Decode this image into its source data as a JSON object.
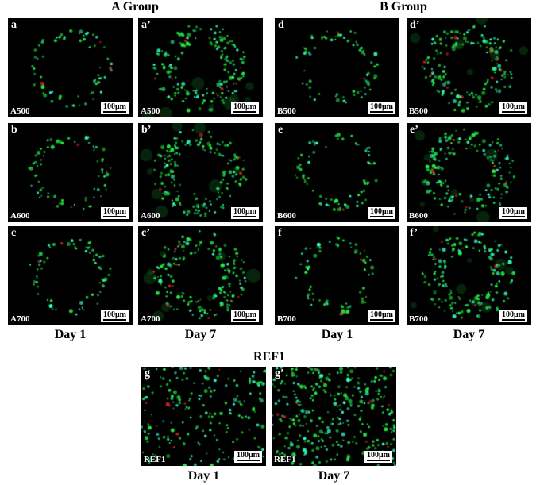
{
  "group_titles": {
    "a": "A Group",
    "b": "B Group",
    "ref": "REF1"
  },
  "day_labels": {
    "day1": "Day 1",
    "day7": "Day 7"
  },
  "scale_bar": "100μm",
  "colors": {
    "live": "#22ee44",
    "dead": "#dd2222",
    "background": "#000000"
  },
  "panels": [
    {
      "label": "a",
      "sample": "A500",
      "day": 1
    },
    {
      "label": "a’",
      "sample": "A500",
      "day": 7
    },
    {
      "label": "d",
      "sample": "B500",
      "day": 1
    },
    {
      "label": "d’",
      "sample": "B500",
      "day": 7
    },
    {
      "label": "b",
      "sample": "A600",
      "day": 1
    },
    {
      "label": "b’",
      "sample": "A600",
      "day": 7
    },
    {
      "label": "e",
      "sample": "B600",
      "day": 1
    },
    {
      "label": "e’",
      "sample": "B600",
      "day": 7
    },
    {
      "label": "c",
      "sample": "A700",
      "day": 1
    },
    {
      "label": "c’",
      "sample": "A700",
      "day": 7
    },
    {
      "label": "f",
      "sample": "B700",
      "day": 1
    },
    {
      "label": "f’",
      "sample": "B700",
      "day": 7
    },
    {
      "label": "g",
      "sample": "REF1",
      "day": 1
    },
    {
      "label": "g’",
      "sample": "REF1",
      "day": 7
    }
  ]
}
